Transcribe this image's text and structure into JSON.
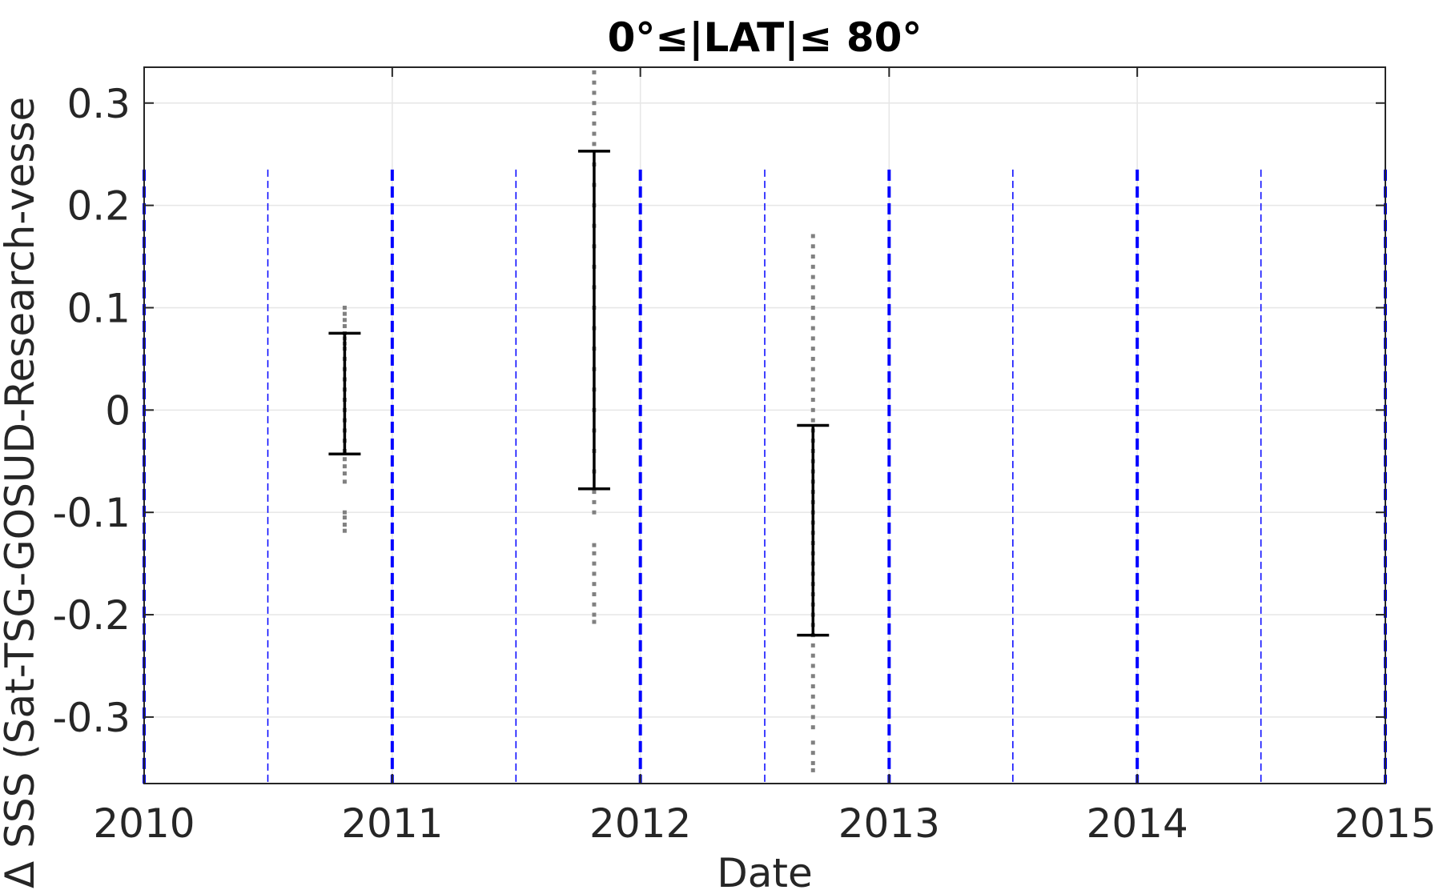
{
  "chart_data": {
    "type": "scatter",
    "title": "0°≤|LAT|≤ 80°",
    "xlabel": "Date",
    "ylabel": "Δ SSS (Sat-TSG-GOSUD-Research-vesse",
    "xlim": [
      "2010-01-01",
      "2015-01-01"
    ],
    "ylim": [
      -0.365,
      0.335
    ],
    "x_ticks": [
      {
        "date": "2010-01-01",
        "label": "2010"
      },
      {
        "date": "2011-01-01",
        "label": "2011"
      },
      {
        "date": "2012-01-01",
        "label": "2012"
      },
      {
        "date": "2013-01-01",
        "label": "2013"
      },
      {
        "date": "2014-01-01",
        "label": "2014"
      },
      {
        "date": "2015-01-01",
        "label": "2015"
      }
    ],
    "y_ticks": [
      {
        "value": 0.3,
        "label": "0.3"
      },
      {
        "value": 0.2,
        "label": "0.2"
      },
      {
        "value": 0.1,
        "label": "0.1"
      },
      {
        "value": 0,
        "label": "0"
      },
      {
        "value": -0.1,
        "label": "-0.1"
      },
      {
        "value": -0.2,
        "label": "-0.2"
      },
      {
        "value": -0.3,
        "label": "-0.3"
      }
    ],
    "grid": true,
    "year_boundaries": [
      "2010-01-01",
      "2011-01-01",
      "2012-01-01",
      "2013-01-01",
      "2014-01-01",
      "2015-01-01"
    ],
    "half_year_marks": [
      "2010-07-02",
      "2011-07-02",
      "2012-07-02",
      "2013-07-02",
      "2014-07-02"
    ],
    "vertical_line_top": 0.235,
    "colors": {
      "points": "#808080",
      "error_bars": "#000000",
      "reference_lines": "#0000ff",
      "grid": "#e6e6e6",
      "axes": "#262626"
    },
    "clusters": [
      {
        "date": "2010-10-23",
        "bar_low": -0.043,
        "bar_high": 0.075,
        "points": [
          -0.118,
          -0.112,
          -0.105,
          -0.1,
          -0.07,
          -0.062,
          -0.055,
          -0.048,
          -0.04,
          -0.03,
          -0.02,
          -0.01,
          0.0,
          0.01,
          0.02,
          0.03,
          0.04,
          0.05,
          0.06,
          0.065,
          0.07,
          0.075,
          0.082,
          0.088,
          0.094,
          0.1
        ]
      },
      {
        "date": "2011-10-25",
        "bar_low": -0.077,
        "bar_high": 0.253,
        "points": [
          -0.207,
          -0.2,
          -0.19,
          -0.18,
          -0.17,
          -0.16,
          -0.15,
          -0.14,
          -0.132,
          -0.1,
          -0.09,
          -0.08,
          -0.06,
          -0.04,
          -0.02,
          0.0,
          0.02,
          0.04,
          0.06,
          0.08,
          0.1,
          0.12,
          0.14,
          0.16,
          0.18,
          0.2,
          0.22,
          0.24,
          0.26,
          0.27,
          0.28,
          0.29,
          0.3,
          0.31,
          0.32,
          0.33
        ]
      },
      {
        "date": "2012-09-11",
        "bar_low": -0.22,
        "bar_high": -0.015,
        "points": [
          -0.352,
          -0.345,
          -0.335,
          -0.325,
          -0.31,
          -0.3,
          -0.29,
          -0.28,
          -0.27,
          -0.26,
          -0.25,
          -0.24,
          -0.23,
          -0.22,
          -0.21,
          -0.2,
          -0.19,
          -0.18,
          -0.17,
          -0.16,
          -0.15,
          -0.14,
          -0.13,
          -0.12,
          -0.11,
          -0.1,
          -0.09,
          -0.08,
          -0.07,
          -0.06,
          -0.05,
          -0.04,
          -0.03,
          -0.02,
          -0.01,
          0.0,
          0.01,
          0.02,
          0.03,
          0.04,
          0.05,
          0.06,
          0.07,
          0.08,
          0.09,
          0.1,
          0.11,
          0.12,
          0.13,
          0.14,
          0.15,
          0.16,
          0.17
        ]
      }
    ]
  }
}
